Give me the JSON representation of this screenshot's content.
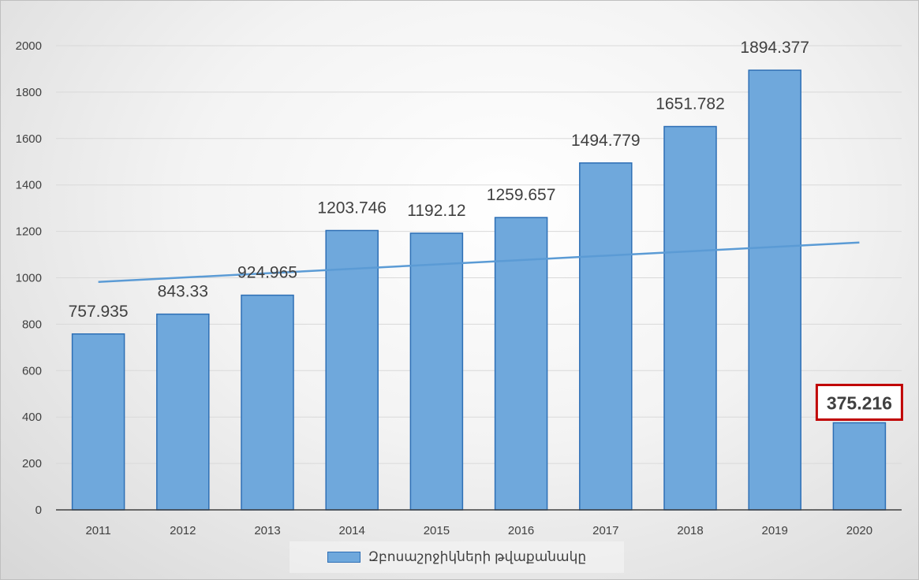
{
  "chart_data": {
    "type": "bar",
    "categories": [
      "2011",
      "2012",
      "2013",
      "2014",
      "2015",
      "2016",
      "2017",
      "2018",
      "2019",
      "2020"
    ],
    "series": [
      {
        "name": "Զբոսաշրջիկների թվաքանակը",
        "values": [
          757.935,
          843.33,
          924.965,
          1203.746,
          1192.12,
          1259.657,
          1494.779,
          1651.782,
          1894.377,
          375.216
        ],
        "labels": [
          "757.935",
          "843.33",
          "924.965",
          "1203.746",
          "1192.12",
          "1259.657",
          "1494.779",
          "1651.782",
          "1894.377",
          "375.216"
        ]
      }
    ],
    "trendline": {
      "type": "linear",
      "start": 982,
      "end": 1152
    },
    "highlighted_category": "2020",
    "yticks": [
      "0",
      "200",
      "400",
      "600",
      "800",
      "1000",
      "1200",
      "1400",
      "1600",
      "1800",
      "2000"
    ],
    "ylim": [
      0,
      2000
    ],
    "grid": true,
    "legend": "bottom",
    "title": "",
    "xlabel": "",
    "ylabel": "",
    "colors": {
      "bar_fill": "#6fa8dc",
      "bar_stroke": "#2e6fb5",
      "trendline": "#5b9bd5",
      "highlight_border": "#c00000",
      "gridline": "#d9d9d9",
      "axis": "#404040"
    }
  }
}
